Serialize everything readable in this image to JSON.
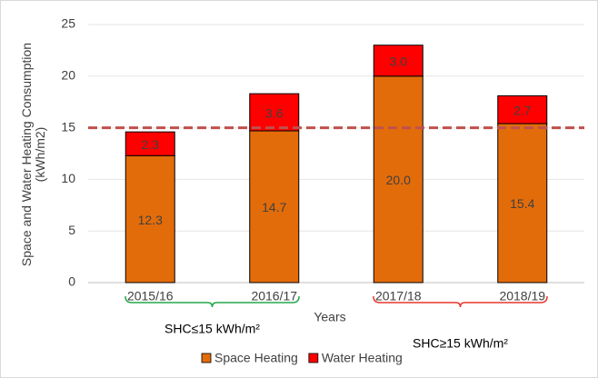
{
  "chart_data": {
    "type": "stacked_bar",
    "y_label": [
      "Space and Water Heating Consumption",
      "(kWh/m2)"
    ],
    "x_label": "Years",
    "categories": [
      "2015/16",
      "2016/17",
      "2017/18",
      "2018/19"
    ],
    "series": [
      {
        "name": "Space Heating",
        "color": "#e36c0a",
        "values": [
          12.3,
          14.7,
          20,
          15.4
        ],
        "value_labels": [
          "12.3",
          "14.7",
          "20.0",
          "15.4"
        ]
      },
      {
        "name": "Water Heating",
        "color": "#ff0000",
        "values": [
          2.3,
          3.6,
          3,
          2.7
        ],
        "value_labels": [
          "2.3",
          "3.6",
          "3.0",
          "2.7"
        ]
      }
    ],
    "ylim": [
      0,
      25
    ],
    "yticks": [
      0,
      5,
      10,
      15,
      20,
      25
    ],
    "grid": true,
    "reference_line": {
      "value": 15,
      "color": "#c0504d"
    },
    "groups": [
      {
        "label": "SHC≤15 kWh/m²",
        "color": "#22a84a"
      },
      {
        "label": "SHC≥15 kWh/m²",
        "color": "#e8372c"
      }
    ],
    "legend": "bottom"
  }
}
